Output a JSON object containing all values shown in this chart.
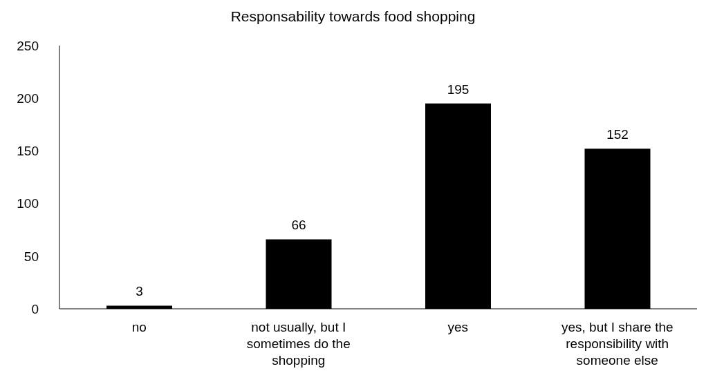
{
  "chart_data": {
    "type": "bar",
    "title": "Responsability towards food shopping",
    "categories": [
      "no",
      "not usually, but I sometimes do the shopping",
      "yes",
      "yes, but I share the responsibility with someone else"
    ],
    "values": [
      3,
      66,
      195,
      152
    ],
    "color": "#000000",
    "ylim": [
      0,
      250
    ],
    "yticks": [
      0,
      50,
      100,
      150,
      200,
      250
    ],
    "grid": false,
    "data_labels": true
  }
}
